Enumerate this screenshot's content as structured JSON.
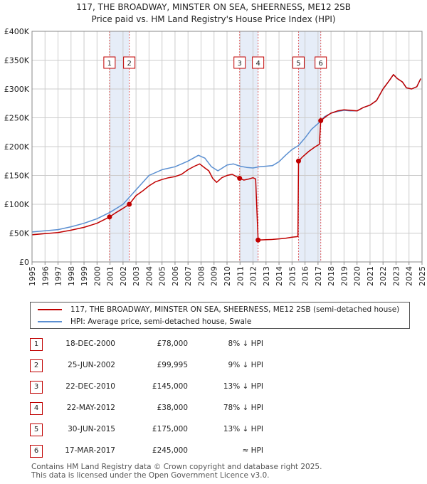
{
  "title_line1": "117, THE BROADWAY, MINSTER ON SEA, SHEERNESS, ME12 2SB",
  "title_line2": "Price paid vs. HM Land Registry's House Price Index (HPI)",
  "colors": {
    "property": "#c00000",
    "hpi": "#5b8fd1",
    "band": "#dce6f5",
    "grid": "#cccccc"
  },
  "chart_data": {
    "type": "line",
    "x_range": [
      1995,
      2025
    ],
    "ylim": [
      0,
      400000
    ],
    "y_ticks": [
      0,
      50000,
      100000,
      150000,
      200000,
      250000,
      300000,
      350000,
      400000
    ],
    "y_tick_labels": [
      "£0",
      "£50K",
      "£100K",
      "£150K",
      "£200K",
      "£250K",
      "£300K",
      "£350K",
      "£400K"
    ],
    "x_ticks": [
      1995,
      1996,
      1997,
      1998,
      1999,
      2000,
      2001,
      2002,
      2003,
      2004,
      2005,
      2006,
      2007,
      2008,
      2009,
      2010,
      2011,
      2012,
      2013,
      2014,
      2015,
      2016,
      2017,
      2018,
      2019,
      2020,
      2021,
      2022,
      2023,
      2024,
      2025
    ],
    "x_tick_labels": [
      "1995",
      "1996",
      "1997",
      "1998",
      "1999",
      "2000",
      "2001",
      "2002",
      "2003",
      "2004",
      "2005",
      "2006",
      "2007",
      "2008",
      "2009",
      "2010",
      "2011",
      "2012",
      "2013",
      "2014",
      "2015",
      "2016",
      "2017",
      "2018",
      "2019",
      "2020",
      "2021",
      "2022",
      "2023",
      "2024",
      "2025"
    ],
    "grid": true,
    "legend_position": "below",
    "bands": [
      [
        2000.96,
        2002.48
      ],
      [
        2010.97,
        2012.39
      ],
      [
        2015.5,
        2017.21
      ]
    ],
    "series": [
      {
        "name": "117, THE BROADWAY, MINSTER ON SEA, SHEERNESS, ME12 2SB (semi-detached house)",
        "color": "#c00000",
        "points": [
          [
            1995.0,
            47000
          ],
          [
            1996.0,
            49000
          ],
          [
            1997.0,
            51000
          ],
          [
            1998.0,
            55000
          ],
          [
            1999.0,
            60000
          ],
          [
            2000.0,
            67000
          ],
          [
            2000.96,
            78000
          ],
          [
            2001.5,
            86000
          ],
          [
            2002.0,
            93000
          ],
          [
            2002.48,
            99995
          ],
          [
            2003.0,
            115000
          ],
          [
            2003.5,
            123000
          ],
          [
            2004.0,
            132000
          ],
          [
            2004.5,
            139000
          ],
          [
            2005.0,
            143000
          ],
          [
            2005.5,
            146000
          ],
          [
            2006.0,
            148000
          ],
          [
            2006.5,
            152000
          ],
          [
            2007.0,
            160000
          ],
          [
            2007.5,
            166000
          ],
          [
            2007.9,
            170000
          ],
          [
            2008.3,
            163000
          ],
          [
            2008.6,
            158000
          ],
          [
            2008.9,
            145000
          ],
          [
            2009.2,
            138000
          ],
          [
            2009.6,
            146000
          ],
          [
            2010.0,
            150000
          ],
          [
            2010.4,
            152000
          ],
          [
            2010.97,
            145000
          ],
          [
            2011.3,
            142000
          ],
          [
            2011.7,
            144000
          ],
          [
            2012.0,
            146000
          ],
          [
            2012.2,
            144000
          ],
          [
            2012.39,
            38000
          ],
          [
            2013.0,
            38500
          ],
          [
            2013.5,
            39000
          ],
          [
            2014.0,
            40000
          ],
          [
            2014.5,
            41000
          ],
          [
            2015.0,
            43000
          ],
          [
            2015.45,
            44000
          ],
          [
            2015.5,
            175000
          ],
          [
            2015.8,
            182000
          ],
          [
            2016.3,
            192000
          ],
          [
            2016.8,
            200000
          ],
          [
            2017.1,
            204000
          ],
          [
            2017.21,
            245000
          ],
          [
            2017.6,
            252000
          ],
          [
            2018.0,
            258000
          ],
          [
            2018.5,
            262000
          ],
          [
            2019.0,
            264000
          ],
          [
            2019.5,
            263000
          ],
          [
            2020.0,
            262000
          ],
          [
            2020.5,
            268000
          ],
          [
            2021.0,
            272000
          ],
          [
            2021.5,
            280000
          ],
          [
            2022.0,
            300000
          ],
          [
            2022.5,
            315000
          ],
          [
            2022.8,
            325000
          ],
          [
            2023.1,
            318000
          ],
          [
            2023.5,
            312000
          ],
          [
            2023.8,
            302000
          ],
          [
            2024.2,
            300000
          ],
          [
            2024.6,
            304000
          ],
          [
            2024.9,
            318000
          ]
        ]
      },
      {
        "name": "HPI: Average price, semi-detached house, Swale",
        "color": "#5b8fd1",
        "points": [
          [
            1995.0,
            52000
          ],
          [
            1996.0,
            54000
          ],
          [
            1997.0,
            56000
          ],
          [
            1998.0,
            61000
          ],
          [
            1999.0,
            67000
          ],
          [
            2000.0,
            75000
          ],
          [
            2001.0,
            86000
          ],
          [
            2002.0,
            100000
          ],
          [
            2003.0,
            125000
          ],
          [
            2004.0,
            150000
          ],
          [
            2005.0,
            160000
          ],
          [
            2006.0,
            165000
          ],
          [
            2007.0,
            175000
          ],
          [
            2007.8,
            185000
          ],
          [
            2008.3,
            180000
          ],
          [
            2008.8,
            165000
          ],
          [
            2009.3,
            158000
          ],
          [
            2010.0,
            168000
          ],
          [
            2010.5,
            170000
          ],
          [
            2011.0,
            166000
          ],
          [
            2011.5,
            164000
          ],
          [
            2012.0,
            163000
          ],
          [
            2012.5,
            165000
          ],
          [
            2013.0,
            166000
          ],
          [
            2013.5,
            167000
          ],
          [
            2014.0,
            174000
          ],
          [
            2014.5,
            185000
          ],
          [
            2015.0,
            195000
          ],
          [
            2015.5,
            202000
          ],
          [
            2016.0,
            215000
          ],
          [
            2016.5,
            230000
          ],
          [
            2017.0,
            240000
          ],
          [
            2017.5,
            252000
          ],
          [
            2018.0,
            258000
          ],
          [
            2018.5,
            261000
          ],
          [
            2019.0,
            263000
          ],
          [
            2019.5,
            262000
          ],
          [
            2020.0,
            262000
          ],
          [
            2020.5,
            268000
          ],
          [
            2021.0,
            272000
          ],
          [
            2021.5,
            280000
          ],
          [
            2022.0,
            300000
          ],
          [
            2022.5,
            315000
          ],
          [
            2022.8,
            325000
          ],
          [
            2023.1,
            318000
          ],
          [
            2023.5,
            312000
          ],
          [
            2023.8,
            302000
          ],
          [
            2024.2,
            300000
          ],
          [
            2024.6,
            304000
          ],
          [
            2024.9,
            318000
          ]
        ]
      }
    ],
    "sale_markers": [
      {
        "label": "1",
        "x": 2000.96,
        "y": 78000
      },
      {
        "label": "2",
        "x": 2002.48,
        "y": 99995
      },
      {
        "label": "3",
        "x": 2010.97,
        "y": 145000
      },
      {
        "label": "4",
        "x": 2012.39,
        "y": 38000
      },
      {
        "label": "5",
        "x": 2015.5,
        "y": 175000
      },
      {
        "label": "6",
        "x": 2017.21,
        "y": 245000
      }
    ]
  },
  "legend": {
    "property_label": "117, THE BROADWAY, MINSTER ON SEA, SHEERNESS, ME12 2SB (semi-detached house)",
    "hpi_label": "HPI: Average price, semi-detached house, Swale"
  },
  "sales": [
    {
      "num": "1",
      "date": "18-DEC-2000",
      "price": "£78,000",
      "hpi": "8% ↓ HPI"
    },
    {
      "num": "2",
      "date": "25-JUN-2002",
      "price": "£99,995",
      "hpi": "9% ↓ HPI"
    },
    {
      "num": "3",
      "date": "22-DEC-2010",
      "price": "£145,000",
      "hpi": "13% ↓ HPI"
    },
    {
      "num": "4",
      "date": "22-MAY-2012",
      "price": "£38,000",
      "hpi": "78% ↓ HPI"
    },
    {
      "num": "5",
      "date": "30-JUN-2015",
      "price": "£175,000",
      "hpi": "13% ↓ HPI"
    },
    {
      "num": "6",
      "date": "17-MAR-2017",
      "price": "£245,000",
      "hpi": "≈ HPI"
    }
  ],
  "footer_line1": "Contains HM Land Registry data © Crown copyright and database right 2025.",
  "footer_line2": "This data is licensed under the Open Government Licence v3.0."
}
